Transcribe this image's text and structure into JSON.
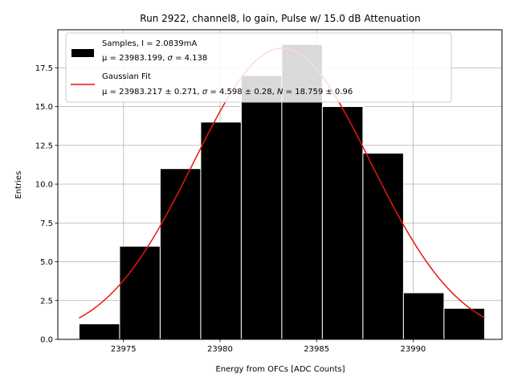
{
  "chart_data": {
    "type": "bar",
    "title": "Run 2922, channel8, lo gain, Pulse w/ 15.0 dB Attenuation",
    "xlabel": "Energy from OFCs [ADC Counts]",
    "ylabel": "Entries",
    "xlim": [
      23971.6,
      23994.6
    ],
    "ylim": [
      0,
      19.95
    ],
    "grid": true,
    "legend_position": "top-left",
    "xticks": [
      23975,
      23980,
      23985,
      23990
    ],
    "xtick_labels": [
      "23975",
      "23980",
      "23985",
      "23990"
    ],
    "yticks": [
      0,
      2.5,
      5,
      7.5,
      10,
      12.5,
      15,
      17.5
    ],
    "ytick_labels": [
      "0.0",
      "2.5",
      "5.0",
      "7.5",
      "10.0",
      "12.5",
      "15.0",
      "17.5"
    ],
    "histogram": {
      "bin_edges": [
        23972.7,
        23974.8,
        23976.9,
        23979.0,
        23981.1,
        23983.2,
        23985.3,
        23987.4,
        23989.5,
        23991.6,
        23993.7
      ],
      "counts": [
        1,
        6,
        11,
        14,
        17,
        19,
        15,
        12,
        3,
        2
      ],
      "color": "#000000",
      "legend_line1": "Samples, I = 2.0839mA",
      "legend_line2_prefix": "μ = 23983.199, ",
      "legend_line2_sigma": "σ",
      "legend_line2_suffix": " = 4.138"
    },
    "gaussian_fit": {
      "mu": 23983.217,
      "sigma": 4.598,
      "N": 18.759,
      "color": "#e8170f",
      "legend_line1": "Gaussian Fit",
      "legend_line2_a": "μ = 23983.217 ± 0.271, ",
      "legend_line2_sigma": "σ",
      "legend_line2_b": " = 4.598 ± 0.28, ",
      "legend_line2_n": "N",
      "legend_line2_c": " = 18.759 ± 0.96"
    }
  }
}
